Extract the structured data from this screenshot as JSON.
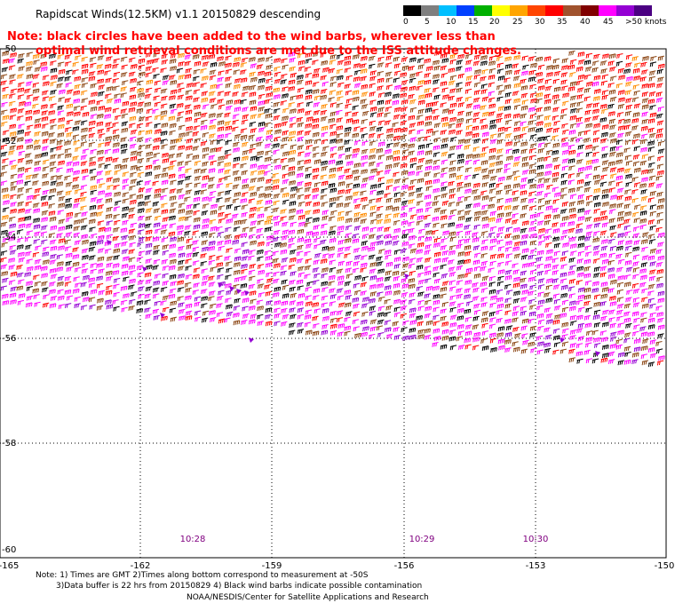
{
  "header": {
    "title": "Rapidscat Winds(12.5KM) v1.1 20150829 descending"
  },
  "colorbar": {
    "labels": [
      "0",
      "5",
      "10",
      "15",
      "20",
      "25",
      "30",
      "35",
      "40",
      "45",
      ">50 knots"
    ],
    "colors": [
      "#000000",
      "#7f7f7f",
      "#00bfff",
      "#0040ff",
      "#00b000",
      "#ffff00",
      "#ffa500",
      "#ff4500",
      "#ff0000",
      "#a0522d",
      "#800000",
      "#ff00ff",
      "#9400d3",
      "#4b0082"
    ]
  },
  "note": {
    "line1": "Note: black circles have been added to the wind barbs, wherever less than",
    "line2": "optimal wind retrieval conditions are met due to the ISS attitude changes."
  },
  "axes": {
    "lat_labels": [
      "-50",
      "-52",
      "-54",
      "-56",
      "-58",
      "-60"
    ],
    "lon_labels": [
      "-165",
      "-162",
      "-159",
      "-156",
      "-153",
      "-150"
    ]
  },
  "times": [
    "10:28",
    "10:29",
    "10:30"
  ],
  "footer": {
    "line1": "Note: 1) Times are GMT 2)Times along bottom correspond to measurement at -50S",
    "line2": "3)Data buffer is 22 hrs from 20150829 4) Black wind barbs indicate possible contamination",
    "line3": "NOAA/NESDIS/Center for Satellite Applications and Research"
  },
  "map_colors": {
    "red": "#ff0000",
    "brown": "#8b4513",
    "orange": "#ff8c00",
    "magenta": "#ff00ff",
    "purple": "#9400d3",
    "dark": "#000000",
    "grid": "#000000"
  }
}
